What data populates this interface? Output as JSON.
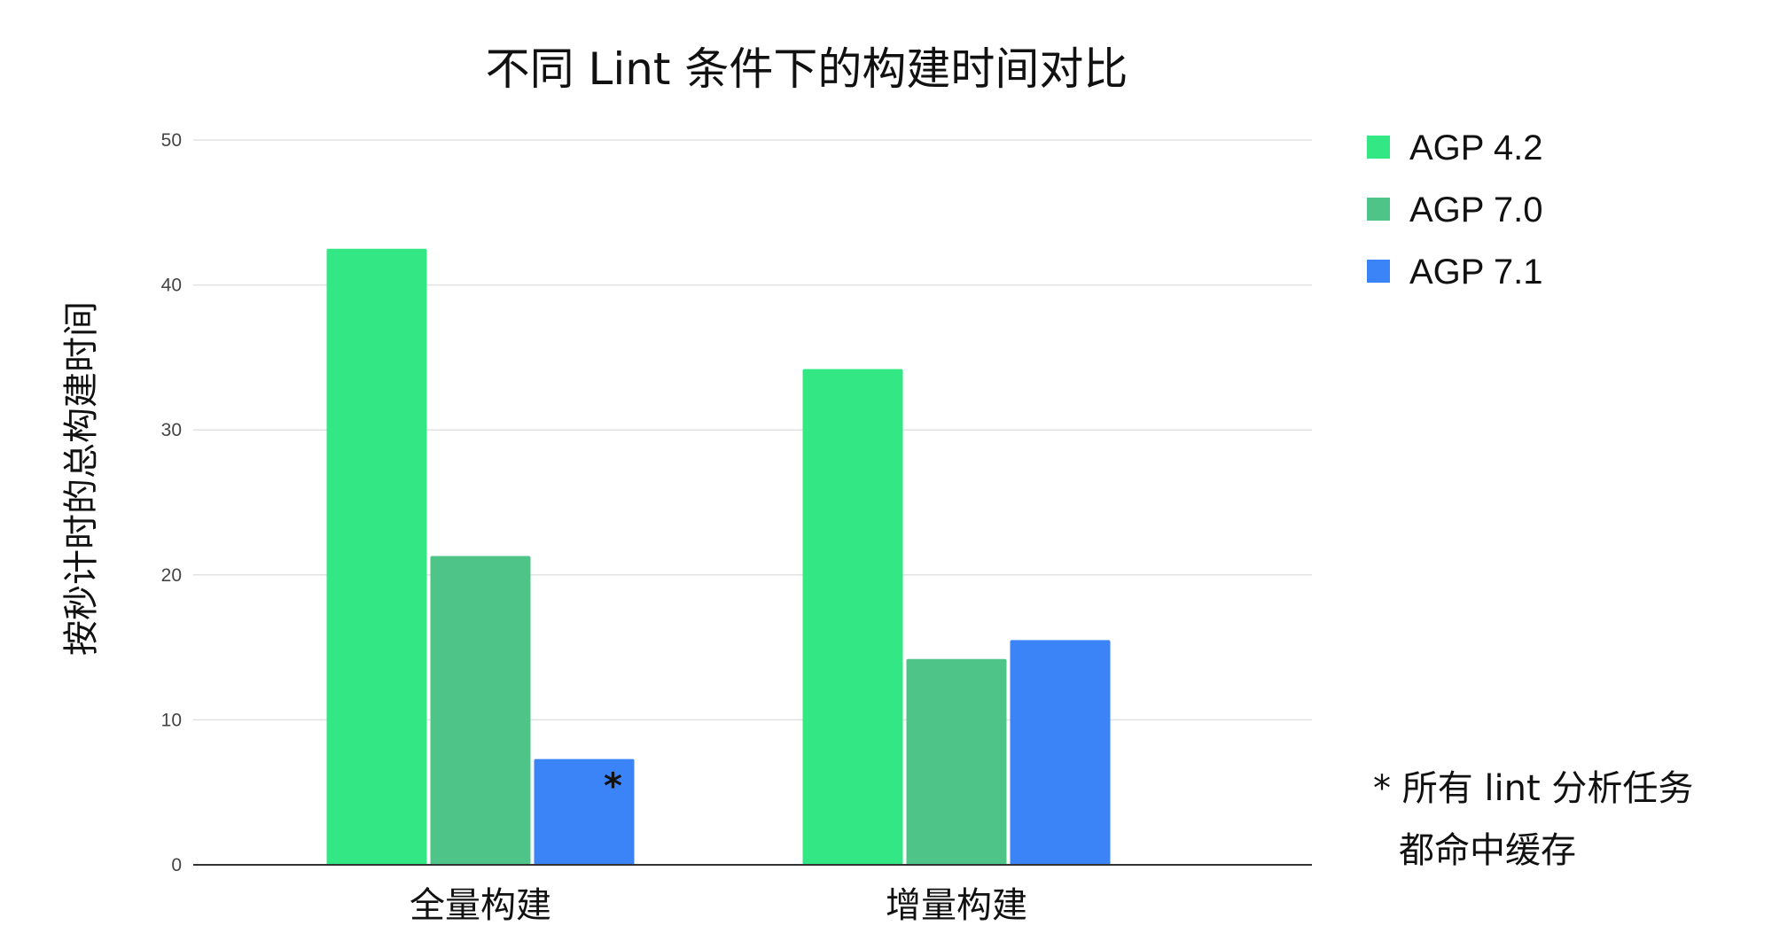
{
  "chart_data": {
    "type": "bar",
    "title": "不同 Lint 条件下的构建时间对比",
    "xlabel": "",
    "ylabel": "按秒计时的总构建时间",
    "ylim": [
      0,
      50
    ],
    "yticks": [
      0,
      10,
      20,
      30,
      40,
      50
    ],
    "grid": true,
    "legend_position": "right",
    "categories": [
      "全量构建",
      "增量构建"
    ],
    "series": [
      {
        "name": "AGP 4.2",
        "color": "#33e884",
        "values": [
          42.5,
          34.2
        ]
      },
      {
        "name": "AGP 7.0",
        "color": "#4ec489",
        "values": [
          21.3,
          14.2
        ]
      },
      {
        "name": "AGP 7.1",
        "color": "#3a84f8",
        "values": [
          7.3,
          15.5
        ]
      }
    ],
    "annotations": [
      {
        "text": "*",
        "category": "全量构建",
        "series": "AGP 7.1"
      }
    ],
    "footnote": [
      "* 所有 lint 分析任务",
      "都命中缓存"
    ]
  }
}
